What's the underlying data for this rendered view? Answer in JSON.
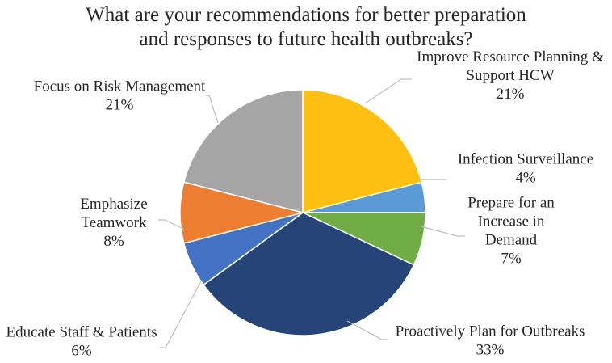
{
  "chart_data": {
    "type": "pie",
    "title": [
      "What are your recommendations for better preparation",
      "and responses to future health outbreaks?"
    ],
    "slices": [
      {
        "label": [
          "Improve Resource Planning &",
          "Support HCW"
        ],
        "value": 21,
        "value_label": "21%",
        "color": "#FDBF12"
      },
      {
        "label": [
          "Infection Surveillance"
        ],
        "value": 4,
        "value_label": "4%",
        "color": "#5B9BD5"
      },
      {
        "label": [
          "Prepare for an",
          "Increase in",
          "Demand"
        ],
        "value": 7,
        "value_label": "7%",
        "color": "#70AD47"
      },
      {
        "label": [
          "Proactively Plan for Outbreaks"
        ],
        "value": 33,
        "value_label": "33%",
        "color": "#264478"
      },
      {
        "label": [
          "Educate Staff & Patients"
        ],
        "value": 6,
        "value_label": "6%",
        "color": "#4472C4"
      },
      {
        "label": [
          "Emphasize",
          "Teamwork"
        ],
        "value": 8,
        "value_label": "8%",
        "color": "#ED7D31"
      },
      {
        "label": [
          "Focus on Risk Management"
        ],
        "value": 21,
        "value_label": "21%",
        "color": "#A5A5A5"
      }
    ],
    "legend": "none"
  }
}
